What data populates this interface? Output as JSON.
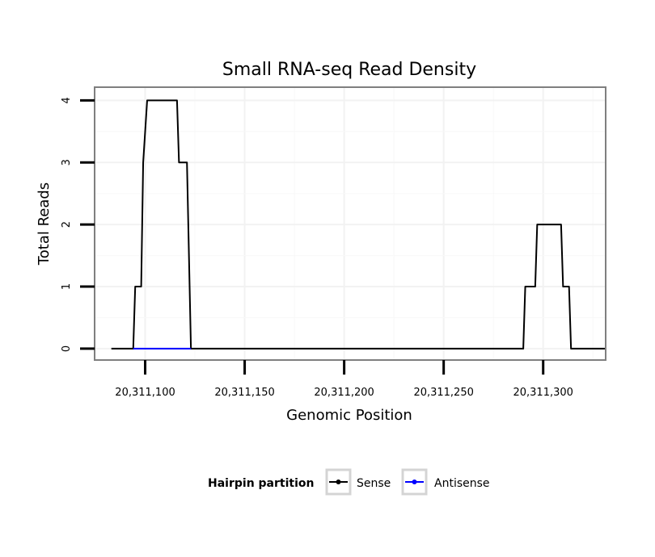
{
  "chart_data": {
    "type": "line",
    "title": "Small RNA-seq Read Density",
    "xlabel": "Genomic Position",
    "ylabel": "Total Reads",
    "xlim": [
      20311075,
      20311331
    ],
    "ylim": [
      -0.17,
      4.2
    ],
    "x_ticks": [
      20311100,
      20311150,
      20311200,
      20311250,
      20311300
    ],
    "x_tick_labels": [
      "20,311,100",
      "20,311,150",
      "20,311,200",
      "20,311,250",
      "20,311,300"
    ],
    "y_ticks": [
      0,
      1,
      2,
      3,
      4
    ],
    "y_tick_labels": [
      "0",
      "1",
      "2",
      "3",
      "4"
    ],
    "grid": true,
    "legend": {
      "title": "Hairpin partition",
      "position": "bottom",
      "entries": [
        {
          "name": "Sense",
          "color": "#000000"
        },
        {
          "name": "Antisense",
          "color": "#0000ff"
        }
      ]
    },
    "series": [
      {
        "name": "Sense",
        "color": "#000000",
        "points": [
          [
            20311083,
            0
          ],
          [
            20311094,
            0
          ],
          [
            20311095,
            1
          ],
          [
            20311098,
            1
          ],
          [
            20311099,
            3
          ],
          [
            20311101,
            4
          ],
          [
            20311116,
            4
          ],
          [
            20311117,
            3
          ],
          [
            20311121,
            3
          ],
          [
            20311123,
            0
          ],
          [
            20311290,
            0
          ],
          [
            20311291,
            1
          ],
          [
            20311296,
            1
          ],
          [
            20311297,
            2
          ],
          [
            20311309,
            2
          ],
          [
            20311310,
            1
          ],
          [
            20311313,
            1
          ],
          [
            20311314,
            0
          ],
          [
            20311331,
            0
          ]
        ]
      },
      {
        "name": "Antisense",
        "color": "#0000ff",
        "points": [
          [
            20311094,
            0
          ],
          [
            20311123,
            0
          ]
        ]
      }
    ]
  }
}
